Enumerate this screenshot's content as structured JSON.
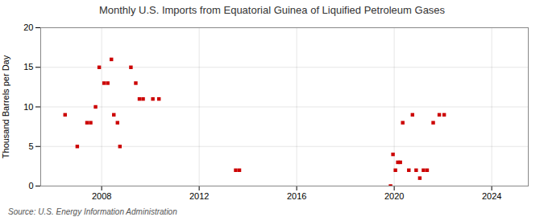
{
  "chart_data": {
    "type": "scatter",
    "title": "Monthly U.S. Imports from Equatorial Guinea of Liquified Petroleum Gases",
    "ylabel": "Thousand Barrels per Day",
    "source": "Source: U.S. Energy Information Administration",
    "color": "#cc0000",
    "marker": "square",
    "grid": true,
    "xlim": [
      2005.5,
      2025.5
    ],
    "ylim": [
      0,
      20
    ],
    "xticks": [
      2008,
      2012,
      2016,
      2020,
      2024
    ],
    "yticks": [
      0,
      5,
      10,
      15,
      20
    ],
    "x": [
      2006.5,
      2007.0,
      2007.4,
      2007.55,
      2007.75,
      2007.9,
      2008.1,
      2008.25,
      2008.4,
      2008.5,
      2008.65,
      2008.75,
      2009.2,
      2009.4,
      2009.55,
      2009.7,
      2010.1,
      2010.35,
      2013.5,
      2013.65,
      2019.85,
      2019.95,
      2020.05,
      2020.15,
      2020.25,
      2020.35,
      2020.6,
      2020.75,
      2020.9,
      2021.05,
      2021.2,
      2021.35,
      2021.6,
      2021.85,
      2022.05
    ],
    "values": [
      9,
      5,
      8,
      8,
      10,
      15,
      13,
      13,
      16,
      9,
      8,
      5,
      15,
      13,
      11,
      11,
      11,
      11,
      2,
      2,
      0,
      4,
      2,
      3,
      3,
      8,
      2,
      9,
      2,
      1,
      2,
      2,
      8,
      9,
      9
    ]
  }
}
